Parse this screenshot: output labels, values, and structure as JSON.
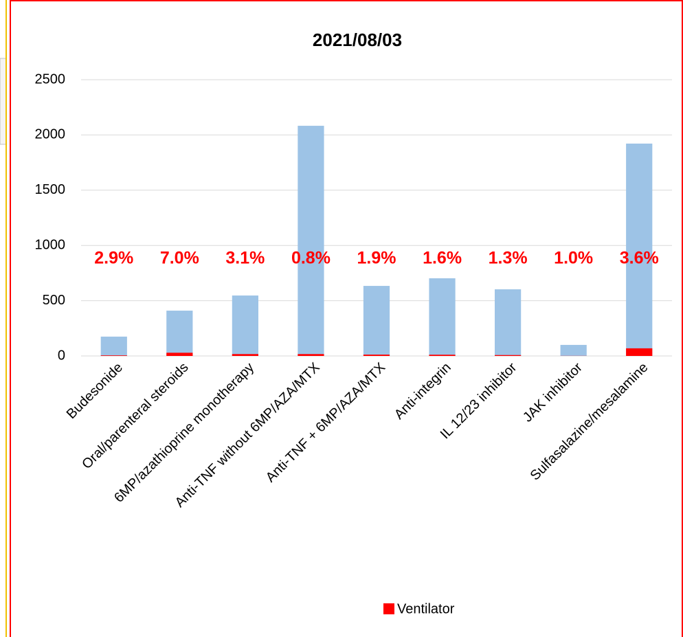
{
  "chart_data": {
    "type": "bar",
    "title": "2021/08/03",
    "categories": [
      "Budesonide",
      "Oral/parenteral steroids",
      "6MP/azathioprine monotherapy",
      "Anti-TNF without 6MP/AZA/MTX",
      "Anti-TNF + 6MP/AZA/MTX",
      "Anti-integrin",
      "IL 12/23 inhibitor",
      "JAK inhibitor",
      "Sulfasalazine/mesalamine"
    ],
    "series": [
      {
        "color": "#9dc3e6",
        "values": [
          175,
          410,
          547,
          2083,
          634,
          703,
          603,
          100,
          1922
        ]
      },
      {
        "name": "Ventilator",
        "color": "#ff0000",
        "values": [
          5,
          29,
          17,
          17,
          12,
          11,
          8,
          1,
          69
        ]
      }
    ],
    "annotations": [
      "2.9%",
      "7.0%",
      "3.1%",
      "0.8%",
      "1.9%",
      "1.6%",
      "1.3%",
      "1.0%",
      "3.6%"
    ],
    "ylim": [
      0,
      2500
    ],
    "yticks": [
      0,
      500,
      1000,
      1500,
      2000,
      2500
    ],
    "grid": true,
    "legend": "bottom"
  }
}
